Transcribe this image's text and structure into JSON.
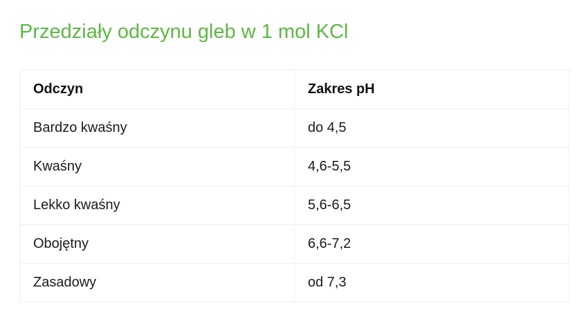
{
  "title": "Przedziały odczynu gleb w 1 mol KCl",
  "table": {
    "headers": [
      "Odczyn",
      "Zakres pH"
    ],
    "rows": [
      [
        "Bardzo kwaśny",
        "do 4,5"
      ],
      [
        "Kwaśny",
        "4,6-5,5"
      ],
      [
        "Lekko kwaśny",
        "5,6-6,5"
      ],
      [
        "Obojętny",
        "6,6-7,2"
      ],
      [
        "Zasadowy",
        "od 7,3"
      ]
    ]
  },
  "colors": {
    "title": "#5db744",
    "border": "#eeeeee",
    "text": "#1a1a1a"
  }
}
